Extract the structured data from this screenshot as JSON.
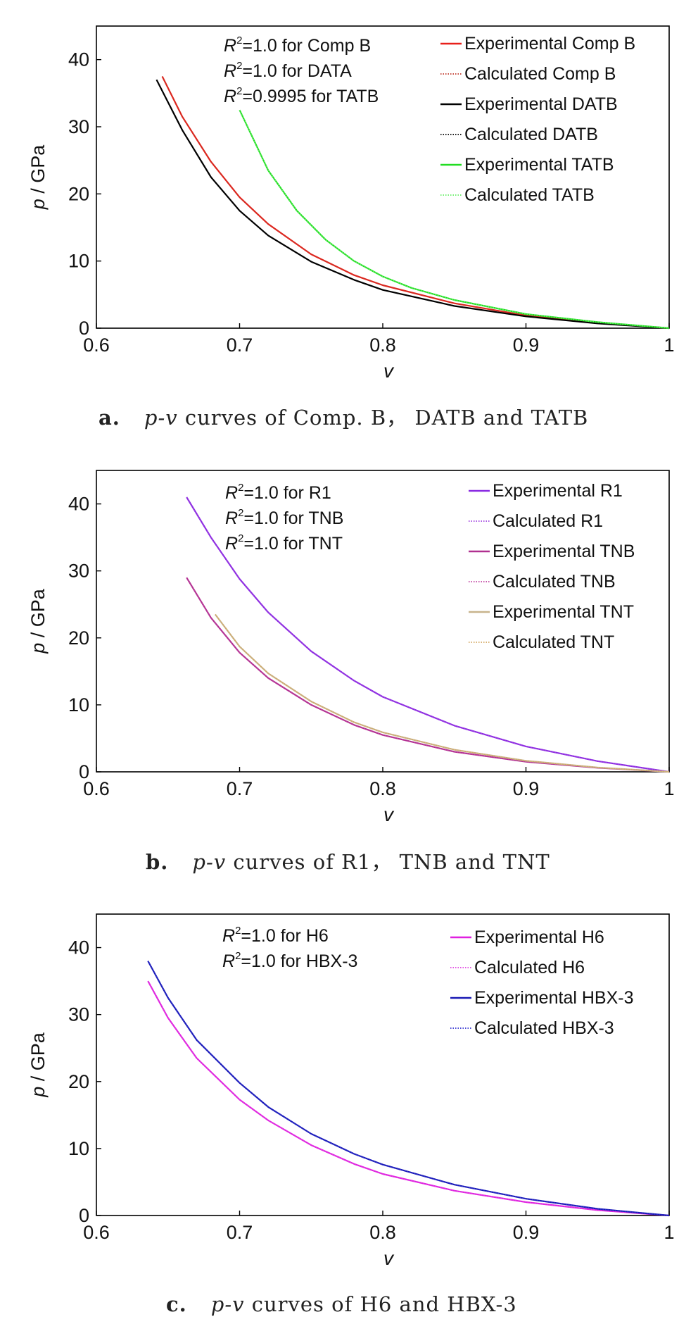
{
  "chart_data": [
    {
      "type": "line",
      "panel_label": "a.",
      "caption_italic": "p-v",
      "caption_rest": " curves of Comp. B， DATB and TATB",
      "xlabel": "v",
      "ylabel_italic": "p",
      "ylabel_rest": " / GPa",
      "xlim": [
        0.6,
        1.0
      ],
      "ylim": [
        0,
        45
      ],
      "xticks": [
        "0.6",
        "0.7",
        "0.8",
        "0.9",
        "1"
      ],
      "yticks": [
        "0",
        "10",
        "20",
        "30",
        "40"
      ],
      "legend_position": "top-right",
      "annotations": [
        {
          "r": "R",
          "sup": "2",
          "text": "=1.0 for Comp B"
        },
        {
          "r": "R",
          "sup": "2",
          "text": "=1.0 for DATA"
        },
        {
          "r": "R",
          "sup": "2",
          "text": "=0.9995 for TATB"
        }
      ],
      "series": [
        {
          "name": "Experimental Comp B",
          "color": "#e8201a",
          "style": "solid",
          "x": [
            0.646,
            0.66,
            0.68,
            0.7,
            0.72,
            0.75,
            0.78,
            0.8,
            0.85,
            0.9,
            0.95,
            1.0
          ],
          "y": [
            37.5,
            31.5,
            24.8,
            19.5,
            15.5,
            11.0,
            7.9,
            6.4,
            3.7,
            1.9,
            0.8,
            0
          ]
        },
        {
          "name": "Calculated Comp B",
          "color": "#c0392b",
          "style": "dotted",
          "x": [
            0.646,
            0.66,
            0.68,
            0.7,
            0.72,
            0.75,
            0.78,
            0.8,
            0.85,
            0.9,
            0.95,
            1.0
          ],
          "y": [
            37.5,
            31.5,
            24.8,
            19.5,
            15.5,
            11.0,
            7.9,
            6.4,
            3.7,
            1.9,
            0.8,
            0
          ]
        },
        {
          "name": "Experimental DATB",
          "color": "#000000",
          "style": "solid",
          "x": [
            0.642,
            0.66,
            0.68,
            0.7,
            0.72,
            0.75,
            0.78,
            0.8,
            0.85,
            0.9,
            0.95,
            1.0
          ],
          "y": [
            37.0,
            29.5,
            22.5,
            17.5,
            13.8,
            9.9,
            7.2,
            5.7,
            3.3,
            1.75,
            0.7,
            0
          ]
        },
        {
          "name": "Calculated DATB",
          "color": "#000000",
          "style": "dotted",
          "x": [
            0.642,
            0.66,
            0.68,
            0.7,
            0.72,
            0.75,
            0.78,
            0.8,
            0.85,
            0.9,
            0.95,
            1.0
          ],
          "y": [
            37.0,
            29.5,
            22.5,
            17.5,
            13.8,
            9.9,
            7.2,
            5.7,
            3.3,
            1.75,
            0.7,
            0
          ]
        },
        {
          "name": "Experimental TATB",
          "color": "#22dd22",
          "style": "solid",
          "x": [
            0.7,
            0.72,
            0.74,
            0.76,
            0.78,
            0.8,
            0.82,
            0.85,
            0.9,
            0.95,
            1.0
          ],
          "y": [
            32.5,
            23.5,
            17.5,
            13.2,
            10.0,
            7.7,
            6.0,
            4.2,
            2.1,
            0.9,
            0
          ]
        },
        {
          "name": "Calculated TATB",
          "color": "#66ee66",
          "style": "dotted",
          "x": [
            0.7,
            0.72,
            0.74,
            0.76,
            0.78,
            0.8,
            0.82,
            0.85,
            0.9,
            0.95,
            1.0
          ],
          "y": [
            32.5,
            23.5,
            17.5,
            13.2,
            10.0,
            7.7,
            6.0,
            4.2,
            2.1,
            0.9,
            0
          ]
        }
      ]
    },
    {
      "type": "line",
      "panel_label": "b.",
      "caption_italic": "p-v",
      "caption_rest": " curves of R1， TNB and TNT",
      "xlabel": "v",
      "ylabel_italic": "p",
      "ylabel_rest": " / GPa",
      "xlim": [
        0.6,
        1.0
      ],
      "ylim": [
        0,
        45
      ],
      "xticks": [
        "0.6",
        "0.7",
        "0.8",
        "0.9",
        "1"
      ],
      "yticks": [
        "0",
        "10",
        "20",
        "30",
        "40"
      ],
      "legend_position": "top-right",
      "annotations": [
        {
          "r": "R",
          "sup": "2",
          "text": "=1.0 for R1"
        },
        {
          "r": "R",
          "sup": "2",
          "text": "=1.0 for TNB"
        },
        {
          "r": "R",
          "sup": "2",
          "text": "=1.0 for TNT"
        }
      ],
      "series": [
        {
          "name": "Experimental R1",
          "color": "#8a2be2",
          "style": "solid",
          "x": [
            0.663,
            0.68,
            0.7,
            0.72,
            0.75,
            0.78,
            0.8,
            0.85,
            0.9,
            0.95,
            1.0
          ],
          "y": [
            41.0,
            35.0,
            28.8,
            23.8,
            18.0,
            13.6,
            11.2,
            6.9,
            3.8,
            1.6,
            0
          ]
        },
        {
          "name": "Calculated R1",
          "color": "#a040e0",
          "style": "dotted",
          "x": [
            0.663,
            0.68,
            0.7,
            0.72,
            0.75,
            0.78,
            0.8,
            0.85,
            0.9,
            0.95,
            1.0
          ],
          "y": [
            41.0,
            35.0,
            28.8,
            23.8,
            18.0,
            13.6,
            11.2,
            6.9,
            3.8,
            1.6,
            0
          ]
        },
        {
          "name": "Experimental TNB",
          "color": "#b03090",
          "style": "solid",
          "x": [
            0.663,
            0.68,
            0.7,
            0.72,
            0.75,
            0.78,
            0.8,
            0.85,
            0.9,
            0.95,
            1.0
          ],
          "y": [
            29.0,
            23.0,
            17.8,
            14.0,
            10.0,
            7.0,
            5.5,
            3.0,
            1.5,
            0.6,
            0
          ]
        },
        {
          "name": "Calculated TNB",
          "color": "#c040a0",
          "style": "dotted",
          "x": [
            0.663,
            0.68,
            0.7,
            0.72,
            0.75,
            0.78,
            0.8,
            0.85,
            0.9,
            0.95,
            1.0
          ],
          "y": [
            29.0,
            23.0,
            17.8,
            14.0,
            10.0,
            7.0,
            5.5,
            3.0,
            1.5,
            0.6,
            0
          ]
        },
        {
          "name": "Experimental TNT",
          "color": "#c8b48c",
          "style": "solid",
          "x": [
            0.683,
            0.7,
            0.72,
            0.75,
            0.78,
            0.8,
            0.85,
            0.9,
            0.95,
            1.0
          ],
          "y": [
            23.5,
            18.7,
            14.7,
            10.5,
            7.4,
            5.9,
            3.3,
            1.65,
            0.65,
            0
          ]
        },
        {
          "name": "Calculated TNT",
          "color": "#d4a860",
          "style": "dotted",
          "x": [
            0.683,
            0.7,
            0.72,
            0.75,
            0.78,
            0.8,
            0.85,
            0.9,
            0.95,
            1.0
          ],
          "y": [
            23.5,
            18.7,
            14.7,
            10.5,
            7.4,
            5.9,
            3.3,
            1.65,
            0.65,
            0
          ]
        }
      ]
    },
    {
      "type": "line",
      "panel_label": "c.",
      "caption_italic": "p-v",
      "caption_rest": " curves of H6 and HBX-3",
      "xlabel": "v",
      "ylabel_italic": "p",
      "ylabel_rest": " / GPa",
      "xlim": [
        0.6,
        1.0
      ],
      "ylim": [
        0,
        45
      ],
      "xticks": [
        "0.6",
        "0.7",
        "0.8",
        "0.9",
        "1"
      ],
      "yticks": [
        "0",
        "10",
        "20",
        "30",
        "40"
      ],
      "legend_position": "top-right",
      "annotations": [
        {
          "r": "R",
          "sup": "2",
          "text": "=1.0 for H6"
        },
        {
          "r": "R",
          "sup": "2",
          "text": "=1.0 for HBX-3"
        }
      ],
      "series": [
        {
          "name": "Experimental H6",
          "color": "#e020e0",
          "style": "solid",
          "x": [
            0.636,
            0.65,
            0.67,
            0.7,
            0.72,
            0.75,
            0.78,
            0.8,
            0.85,
            0.9,
            0.95,
            1.0
          ],
          "y": [
            35.0,
            29.5,
            23.5,
            17.3,
            14.2,
            10.5,
            7.7,
            6.2,
            3.7,
            2.0,
            0.8,
            0
          ]
        },
        {
          "name": "Calculated H6",
          "color": "#e040e0",
          "style": "dotted",
          "x": [
            0.636,
            0.65,
            0.67,
            0.7,
            0.72,
            0.75,
            0.78,
            0.8,
            0.85,
            0.9,
            0.95,
            1.0
          ],
          "y": [
            35.0,
            29.5,
            23.5,
            17.3,
            14.2,
            10.5,
            7.7,
            6.2,
            3.7,
            2.0,
            0.8,
            0
          ]
        },
        {
          "name": "Experimental HBX-3",
          "color": "#1a1ab4",
          "style": "solid",
          "x": [
            0.636,
            0.65,
            0.67,
            0.7,
            0.72,
            0.75,
            0.78,
            0.8,
            0.85,
            0.9,
            0.95,
            1.0
          ],
          "y": [
            38.0,
            32.5,
            26.2,
            19.8,
            16.2,
            12.2,
            9.2,
            7.6,
            4.6,
            2.5,
            1.0,
            0
          ]
        },
        {
          "name": "Calculated HBX-3",
          "color": "#3030d0",
          "style": "dotted",
          "x": [
            0.636,
            0.65,
            0.67,
            0.7,
            0.72,
            0.75,
            0.78,
            0.8,
            0.85,
            0.9,
            0.95,
            1.0
          ],
          "y": [
            38.0,
            32.5,
            26.2,
            19.8,
            16.2,
            12.2,
            9.2,
            7.6,
            4.6,
            2.5,
            1.0,
            0
          ]
        }
      ]
    }
  ]
}
